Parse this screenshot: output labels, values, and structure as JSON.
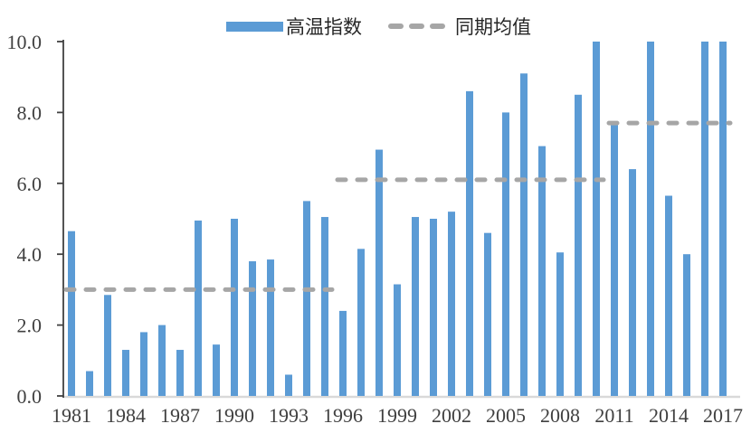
{
  "chart_data": {
    "type": "bar",
    "title": "",
    "categories": [
      "1981",
      "1982",
      "1983",
      "1984",
      "1985",
      "1986",
      "1987",
      "1988",
      "1989",
      "1990",
      "1991",
      "1992",
      "1993",
      "1994",
      "1995",
      "1996",
      "1997",
      "1998",
      "1999",
      "2000",
      "2001",
      "2002",
      "2003",
      "2004",
      "2005",
      "2006",
      "2007",
      "2008",
      "2009",
      "2010",
      "2011",
      "2012",
      "2013",
      "2014",
      "2015",
      "2016",
      "2017"
    ],
    "series": [
      {
        "name": "高温指数",
        "type": "bar",
        "color": "#5B9BD5",
        "values": [
          4.65,
          0.7,
          2.85,
          1.3,
          1.8,
          2.0,
          1.3,
          4.95,
          1.45,
          5.0,
          3.8,
          3.85,
          0.6,
          5.5,
          5.05,
          2.4,
          4.15,
          6.95,
          3.15,
          5.05,
          5.0,
          5.2,
          8.6,
          4.6,
          8.0,
          9.1,
          7.05,
          4.05,
          8.5,
          10.0,
          7.65,
          6.4,
          10.0,
          5.65,
          4.0,
          10.0,
          10.0
        ]
      },
      {
        "name": "同期均值",
        "type": "dashed-mean-line",
        "color": "#A6A6A6",
        "segments": [
          {
            "from": "1981",
            "to": "1995",
            "value": 3.0
          },
          {
            "from": "1996",
            "to": "2010",
            "value": 6.1
          },
          {
            "from": "2011",
            "to": "2017",
            "value": 7.7
          }
        ]
      }
    ],
    "ylim": [
      0,
      10
    ],
    "ytick_step": 2,
    "ytick_labels": [
      "0.0",
      "2.0",
      "4.0",
      "6.0",
      "8.0",
      "10.0"
    ],
    "xtick_labels": [
      "1981",
      "1984",
      "1987",
      "1990",
      "1993",
      "1996",
      "1999",
      "2002",
      "2005",
      "2008",
      "2011",
      "2014",
      "2017"
    ],
    "legend_position": "top",
    "grid": false,
    "axis_color": "#404040",
    "baseline_color": "#D9D9D9",
    "label_color": "#404040"
  }
}
